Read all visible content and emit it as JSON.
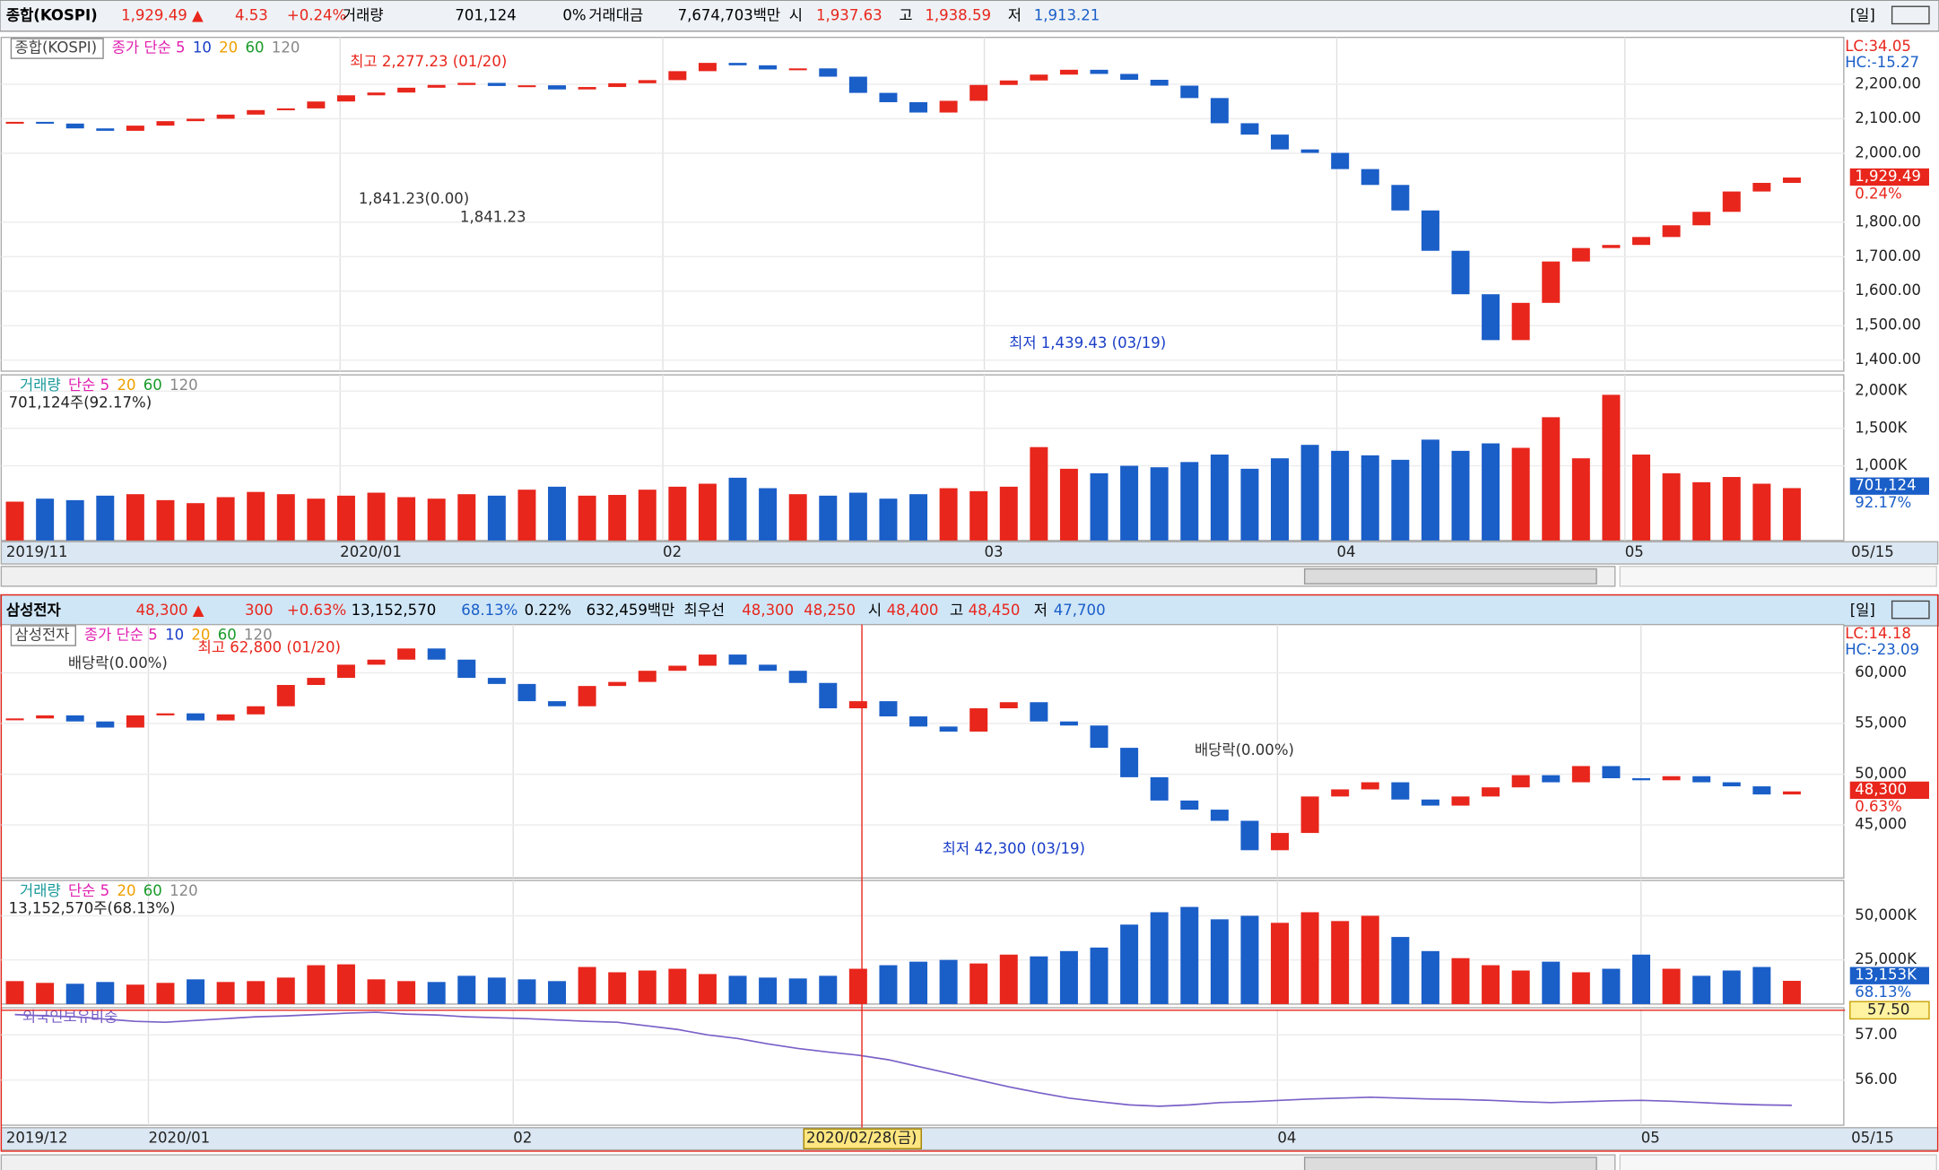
{
  "panels": [
    {
      "header": [
        {
          "text": "종합(KOSPI)",
          "color": "#000"
        },
        {
          "text": "1,929.49 ▲",
          "color": "#e8261c"
        },
        {
          "text": "4.53",
          "color": "#e8261c"
        },
        {
          "text": "+0.24%",
          "color": "#e8261c"
        },
        {
          "text": "거래량",
          "color": "#000"
        },
        {
          "text": "701,124",
          "color": "#000"
        },
        {
          "text": "0%",
          "color": "#000"
        },
        {
          "text": "거래대금",
          "color": "#000"
        },
        {
          "text": "7,674,703백만",
          "color": "#000"
        },
        {
          "text": "시",
          "color": "#000"
        },
        {
          "text": "1,937.63",
          "color": "#e8261c"
        },
        {
          "text": "고",
          "color": "#000"
        },
        {
          "text": "1,938.59",
          "color": "#e8261c"
        },
        {
          "text": "저",
          "color": "#000"
        },
        {
          "text": "1,913.21",
          "color": "#1a5ec8"
        },
        {
          "text": "[일]",
          "color": "#000"
        }
      ],
      "legend": [
        {
          "text": "종합(KOSPI)",
          "color": "#444"
        },
        {
          "text": "종가 단순 5",
          "color": "#e020b0"
        },
        {
          "text": "10",
          "color": "#1a3ec8"
        },
        {
          "text": "20",
          "color": "#f0a000"
        },
        {
          "text": "60",
          "color": "#1a9a2a"
        },
        {
          "text": "120",
          "color": "#888"
        }
      ],
      "vol_legend": [
        {
          "text": "거래량",
          "color": "#1a9a9a"
        },
        {
          "text": "단순 5",
          "color": "#e020b0"
        },
        {
          "text": "20",
          "color": "#f0a000"
        },
        {
          "text": "60",
          "color": "#1a9a2a"
        },
        {
          "text": "120",
          "color": "#888"
        }
      ],
      "annotations": [
        {
          "text": "최고 2,277.23 (01/20)",
          "color": "#e8261c"
        },
        {
          "text": "1,841.23(0.00)",
          "color": "#333"
        },
        {
          "text": "1,841.23",
          "color": "#333"
        },
        {
          "text": "최저 1,439.43 (03/19)",
          "color": "#1a3ec8"
        },
        {
          "text": "LC:34.05",
          "color": "#e8261c"
        },
        {
          "text": "HC:-15.27",
          "color": "#1a5ec8"
        }
      ],
      "price_box": {
        "text": "1,929.49",
        "sub": "0.24%"
      },
      "vol_note": "701,124주(92.17%)",
      "vol_box": {
        "text": "701,124",
        "sub": "92.17%"
      },
      "ylim": [
        1368,
        2336
      ],
      "yticks": [
        {
          "value": 1400,
          "label": "1,400.00"
        },
        {
          "value": 1500,
          "label": "1,500.00"
        },
        {
          "value": 1600,
          "label": "1,600.00"
        },
        {
          "value": 1700,
          "label": "1,700.00"
        },
        {
          "value": 1800,
          "label": "1,800.00"
        },
        {
          "value": 2000,
          "label": "2,000.00"
        },
        {
          "value": 2100,
          "label": "2,100.00"
        },
        {
          "value": 2200,
          "label": "2,200.00"
        }
      ],
      "close": [
        2091,
        2086,
        2072,
        2065,
        2080,
        2093,
        2100,
        2112,
        2125,
        2130,
        2150,
        2168,
        2176,
        2190,
        2198,
        2204,
        2195,
        2197,
        2185,
        2192,
        2203,
        2212,
        2238,
        2262,
        2255,
        2243,
        2246,
        2222,
        2175,
        2148,
        2118,
        2152,
        2198,
        2211,
        2228,
        2242,
        2230,
        2213,
        2196,
        2160,
        2087,
        2054,
        2011,
        2001,
        1954,
        1908,
        1834,
        1717,
        1591,
        1458,
        1566,
        1686,
        1725,
        1734,
        1757,
        1791,
        1830,
        1889,
        1914,
        1929.49
      ],
      "vol_ylim": [
        0,
        2217
      ],
      "vol_yticks": [
        {
          "value": 1000,
          "label": "1,000K"
        },
        {
          "value": 1500,
          "label": "1,500K"
        },
        {
          "value": 2000,
          "label": "2,000K"
        }
      ],
      "volume": [
        520,
        560,
        540,
        600,
        620,
        540,
        500,
        580,
        650,
        620,
        560,
        600,
        640,
        580,
        560,
        620,
        600,
        680,
        720,
        600,
        610,
        680,
        720,
        760,
        840,
        700,
        620,
        600,
        640,
        560,
        620,
        700,
        660,
        720,
        1250,
        960,
        900,
        1000,
        980,
        1050,
        1150,
        960,
        1100,
        1280,
        1200,
        1140,
        1080,
        1350,
        1200,
        1300,
        1240,
        1650,
        1100,
        1950,
        1150,
        900,
        780,
        850,
        760,
        701.124
      ],
      "xlabels": [
        "2019/11",
        "2020/01",
        "02",
        "03",
        "04",
        "05",
        "05/15"
      ]
    },
    {
      "header": [
        {
          "text": "삼성전자",
          "color": "#000"
        },
        {
          "text": "48,300 ▲",
          "color": "#e8261c"
        },
        {
          "text": "300",
          "color": "#e8261c"
        },
        {
          "text": "+0.63%",
          "color": "#e8261c"
        },
        {
          "text": "13,152,570",
          "color": "#000"
        },
        {
          "text": "68.13%",
          "color": "#1a5ec8"
        },
        {
          "text": "0.22%",
          "color": "#000"
        },
        {
          "text": "632,459백만",
          "color": "#000"
        },
        {
          "text": "최우선",
          "color": "#000"
        },
        {
          "text": "48,300",
          "color": "#e8261c"
        },
        {
          "text": "48,250",
          "color": "#e8261c"
        },
        {
          "text": "시",
          "color": "#000"
        },
        {
          "text": "48,400",
          "color": "#e8261c"
        },
        {
          "text": "고",
          "color": "#000"
        },
        {
          "text": "48,450",
          "color": "#e8261c"
        },
        {
          "text": "저",
          "color": "#000"
        },
        {
          "text": "47,700",
          "color": "#1a5ec8"
        },
        {
          "text": "[일]",
          "color": "#000"
        }
      ],
      "legend": [
        {
          "text": "삼성전자",
          "color": "#444"
        },
        {
          "text": "종가 단순 5",
          "color": "#e020b0"
        },
        {
          "text": "10",
          "color": "#1a3ec8"
        },
        {
          "text": "20",
          "color": "#f0a000"
        },
        {
          "text": "60",
          "color": "#1a9a2a"
        },
        {
          "text": "120",
          "color": "#888"
        }
      ],
      "vol_legend": [
        {
          "text": "거래량",
          "color": "#1a9a9a"
        },
        {
          "text": "단순 5",
          "color": "#e020b0"
        },
        {
          "text": "20",
          "color": "#f0a000"
        },
        {
          "text": "60",
          "color": "#1a9a2a"
        },
        {
          "text": "120",
          "color": "#888"
        }
      ],
      "annotations": [
        {
          "text": "최고 62,800 (01/20)",
          "color": "#e8261c"
        },
        {
          "text": "배당락(0.00%)",
          "color": "#333"
        },
        {
          "text": "배당락(0.00%)",
          "color": "#333"
        },
        {
          "text": "최저 42,300 (03/19)",
          "color": "#1a3ec8"
        },
        {
          "text": "LC:14.18",
          "color": "#e8261c"
        },
        {
          "text": "HC:-23.09",
          "color": "#1a5ec8"
        }
      ],
      "price_box": {
        "text": "48,300",
        "sub": "0.63%"
      },
      "vol_note": "13,152,570주(68.13%)",
      "vol_box": {
        "text": "13,153K",
        "sub": "68.13%"
      },
      "ylim": [
        39760,
        64760
      ],
      "yticks": [
        {
          "value": 45000,
          "label": "45,000"
        },
        {
          "value": 50000,
          "label": "50,000"
        },
        {
          "value": 55000,
          "label": "55,000"
        },
        {
          "value": 60000,
          "label": "60,000"
        }
      ],
      "close": [
        55500,
        55800,
        55200,
        54600,
        55800,
        56000,
        55300,
        55900,
        56700,
        58800,
        59500,
        60800,
        61300,
        62400,
        61300,
        59500,
        58900,
        57200,
        56700,
        58700,
        59100,
        60200,
        60700,
        61800,
        60800,
        60200,
        59000,
        56500,
        57200,
        55700,
        54700,
        54200,
        56500,
        57100,
        55200,
        54800,
        52600,
        49700,
        47400,
        46500,
        45400,
        42500,
        44200,
        47800,
        48500,
        49200,
        47500,
        46900,
        47800,
        48700,
        49900,
        49200,
        50800,
        49600,
        49400,
        49800,
        49200,
        48800,
        48000,
        48300
      ],
      "vol_ylim": [
        0,
        70000
      ],
      "vol_yticks": [
        {
          "value": 25000,
          "label": "25,000K"
        },
        {
          "value": 50000,
          "label": "50,000K"
        }
      ],
      "volume": [
        13000,
        12000,
        11500,
        12500,
        11000,
        12000,
        14000,
        12500,
        13000,
        15000,
        22000,
        22500,
        14000,
        13000,
        12500,
        16000,
        15000,
        14000,
        13000,
        21000,
        18000,
        19000,
        20000,
        17000,
        16000,
        15000,
        14500,
        16000,
        20000,
        22000,
        24000,
        25000,
        23000,
        28000,
        27000,
        30000,
        32000,
        45000,
        52000,
        55000,
        48000,
        50000,
        46000,
        52000,
        47000,
        50000,
        38000,
        30000,
        26000,
        22000,
        19000,
        24000,
        18000,
        20000,
        28000,
        20000,
        16000,
        19000,
        21000,
        13152.57
      ],
      "foreign": {
        "name": "외국인보유비중",
        "box": "57.50",
        "ylim": [
          55.0,
          57.6
        ],
        "yticks": [
          {
            "value": 56,
            "label": "56.00"
          },
          {
            "value": 57,
            "label": "57.00"
          }
        ],
        "values": [
          57.45,
          57.42,
          57.4,
          57.35,
          57.3,
          57.28,
          57.32,
          57.36,
          57.4,
          57.42,
          57.45,
          57.48,
          57.5,
          57.46,
          57.44,
          57.4,
          57.38,
          57.36,
          57.33,
          57.3,
          57.28,
          57.2,
          57.12,
          57.0,
          56.92,
          56.8,
          56.7,
          56.62,
          56.55,
          56.45,
          56.3,
          56.15,
          56.0,
          55.85,
          55.72,
          55.6,
          55.52,
          55.45,
          55.42,
          55.45,
          55.5,
          55.52,
          55.55,
          55.58,
          55.6,
          55.62,
          55.6,
          55.58,
          55.57,
          55.55,
          55.52,
          55.5,
          55.52,
          55.54,
          55.55,
          55.53,
          55.5,
          55.47,
          55.45,
          55.44
        ]
      },
      "crosshair": "2020/02/28(금)",
      "xlabels": [
        "2019/12",
        "2020/01",
        "02",
        "04",
        "05",
        "05/15"
      ]
    }
  ]
}
